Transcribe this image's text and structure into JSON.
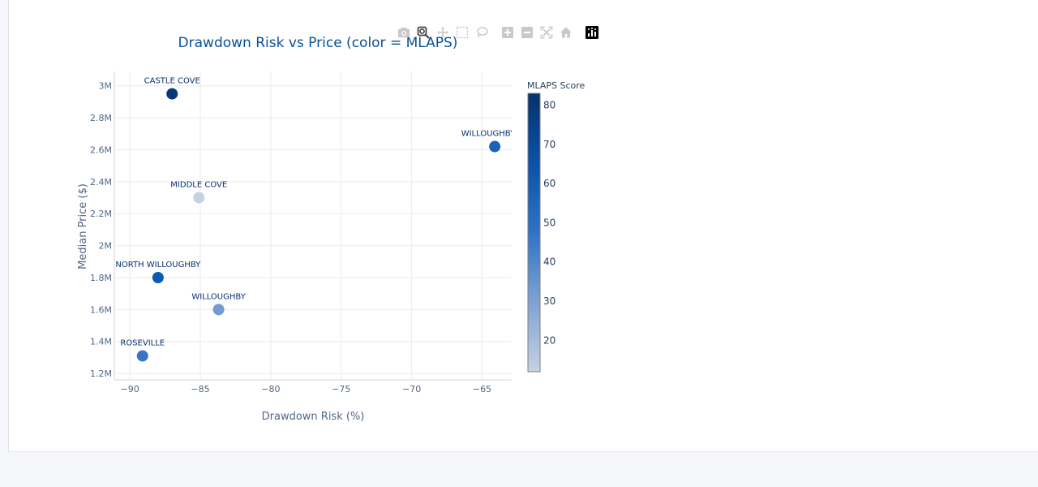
{
  "modebar": {
    "buttons": [
      {
        "name": "camera-icon",
        "label": "Download plot as a png"
      },
      {
        "name": "zoom-icon",
        "label": "Zoom"
      },
      {
        "name": "pan-icon",
        "label": "Pan"
      },
      {
        "name": "box-select-icon",
        "label": "Box Select"
      },
      {
        "name": "lasso-select-icon",
        "label": "Lasso Select"
      },
      {
        "name": "zoom-in-icon",
        "label": "Zoom in"
      },
      {
        "name": "zoom-out-icon",
        "label": "Zoom out"
      },
      {
        "name": "autoscale-icon",
        "label": "Autoscale"
      },
      {
        "name": "reset-axes-icon",
        "label": "Reset axes"
      },
      {
        "name": "plotly-logo-icon",
        "label": "Produced with Plotly"
      }
    ]
  },
  "chart_data": {
    "type": "scatter",
    "title": "Drawdown Risk vs Price (color = MLAPS)",
    "xlabel": "Drawdown Risk (%)",
    "ylabel": "Median Price ($)",
    "xlim": [
      -91.1,
      -62.9
    ],
    "ylim": [
      1160000,
      3090000
    ],
    "x_ticks": [
      -90,
      -85,
      -80,
      -75,
      -70,
      -65
    ],
    "x_tick_labels": [
      "−90",
      "−85",
      "−80",
      "−75",
      "−70",
      "−65"
    ],
    "y_ticks": [
      1200000,
      1400000,
      1600000,
      1800000,
      2000000,
      2200000,
      2400000,
      2600000,
      2800000,
      3000000
    ],
    "y_tick_labels": [
      "1.2M",
      "1.4M",
      "1.6M",
      "1.8M",
      "2M",
      "2.2M",
      "2.4M",
      "2.6M",
      "2.8M",
      "3M"
    ],
    "grid": true,
    "colorbar": {
      "title": "MLAPS Score",
      "range": [
        12,
        83
      ],
      "ticks": [
        20,
        30,
        40,
        50,
        60,
        70,
        80
      ],
      "colors": [
        "#c6d2e0",
        "#8aaad5",
        "#5a8ed0",
        "#2c6fc2",
        "#0d5bb4",
        "#084a9a",
        "#08306b"
      ]
    },
    "points": [
      {
        "label": "CASTLE COVE",
        "x": -87.0,
        "y": 2950000,
        "score": 80
      },
      {
        "label": "WILLOUGHBY EA",
        "x": -64.1,
        "y": 2620000,
        "score": 55
      },
      {
        "label": "MIDDLE COVE",
        "x": -85.1,
        "y": 2300000,
        "score": 12
      },
      {
        "label": "NORTH WILLOUGHBY",
        "x": -88.0,
        "y": 1800000,
        "score": 60
      },
      {
        "label": "WILLOUGHBY",
        "x": -83.7,
        "y": 1600000,
        "score": 30
      },
      {
        "label": "ROSEVILLE",
        "x": -89.1,
        "y": 1310000,
        "score": 45
      }
    ]
  }
}
